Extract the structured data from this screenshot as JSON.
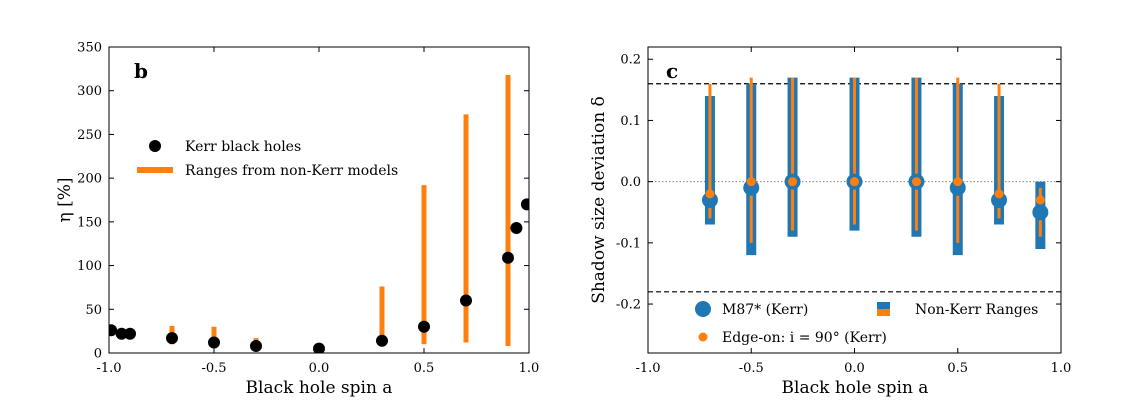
{
  "colors": {
    "kerr": "#000000",
    "orange": "#ff7f0e",
    "blue": "#1f77b4",
    "dashed": "#000000",
    "dotted": "#888888"
  },
  "chart_data": [
    {
      "type": "scatter",
      "panel_label": "b",
      "xlabel": "Black hole spin a",
      "ylabel": "η [%]",
      "xlim": [
        -1.0,
        1.0
      ],
      "ylim": [
        0,
        350
      ],
      "xticks": [
        -1.0,
        -0.5,
        0.0,
        0.5,
        1.0
      ],
      "xtick_labels": [
        "-1.0",
        "-0.5",
        "0.0",
        "0.5",
        "1.0"
      ],
      "yticks": [
        0,
        50,
        100,
        150,
        200,
        250,
        300,
        350
      ],
      "ytick_labels": [
        "0",
        "50",
        "100",
        "150",
        "200",
        "250",
        "300",
        "350"
      ],
      "legend_position": "upper-left",
      "series": [
        {
          "name": "Kerr black holes",
          "kind": "points",
          "x": [
            -0.99,
            -0.94,
            -0.9,
            -0.7,
            -0.5,
            -0.3,
            0.0,
            0.3,
            0.5,
            0.7,
            0.9,
            0.94,
            0.99
          ],
          "y": [
            26,
            22,
            22,
            17,
            12,
            8,
            5,
            14,
            30,
            60,
            109,
            143,
            170
          ]
        },
        {
          "name": "Ranges from non-Kerr models",
          "kind": "ranges",
          "x": [
            -0.7,
            -0.5,
            -0.3,
            0.3,
            0.5,
            0.7,
            0.9
          ],
          "low": [
            10,
            10,
            5,
            13,
            10,
            12,
            8
          ],
          "high": [
            31,
            30,
            17,
            76,
            192,
            273,
            318
          ]
        }
      ]
    },
    {
      "type": "scatter",
      "panel_label": "c",
      "xlabel": "Black hole spin a",
      "ylabel": "Shadow size deviation δ",
      "xlim": [
        -1.0,
        1.0
      ],
      "ylim": [
        -0.28,
        0.22
      ],
      "xticks": [
        -1.0,
        -0.5,
        0.0,
        0.5,
        1.0
      ],
      "xtick_labels": [
        "-1.0",
        "-0.5",
        "0.0",
        "0.5",
        "1.0"
      ],
      "yticks": [
        -0.2,
        -0.1,
        0.0,
        0.1,
        0.2
      ],
      "ytick_labels": [
        "-0.2",
        "-0.1",
        "0.0",
        "0.1",
        "0.2"
      ],
      "reference_lines": {
        "dashed": [
          0.16,
          -0.18
        ],
        "dotted": [
          0.0
        ]
      },
      "legend_position": "lower-center",
      "series": [
        {
          "name": "Non-Kerr Ranges",
          "kind": "ranges",
          "x": [
            -0.7,
            -0.5,
            -0.3,
            0.0,
            0.3,
            0.5,
            0.7,
            0.9
          ],
          "blue_low": [
            -0.07,
            -0.12,
            -0.09,
            -0.08,
            -0.09,
            -0.12,
            -0.07,
            -0.11
          ],
          "blue_high": [
            0.14,
            0.16,
            0.17,
            0.17,
            0.17,
            0.16,
            0.14,
            0.0
          ],
          "orange_low": [
            -0.06,
            -0.1,
            -0.08,
            -0.07,
            -0.08,
            -0.1,
            -0.06,
            -0.09
          ],
          "orange_high": [
            0.16,
            0.17,
            0.17,
            0.17,
            0.17,
            0.17,
            0.16,
            -0.01
          ]
        },
        {
          "name": "M87* (Kerr)",
          "kind": "points",
          "x": [
            -0.7,
            -0.5,
            -0.3,
            0.0,
            0.3,
            0.5,
            0.7,
            0.9
          ],
          "y": [
            -0.03,
            -0.01,
            0.0,
            0.0,
            0.0,
            -0.01,
            -0.03,
            -0.05
          ]
        },
        {
          "name": "Edge-on: i = 90° (Kerr)",
          "kind": "points",
          "x": [
            -0.7,
            -0.5,
            -0.3,
            0.0,
            0.3,
            0.5,
            0.7,
            0.9
          ],
          "y": [
            -0.02,
            0.0,
            0.0,
            0.0,
            0.0,
            0.0,
            -0.02,
            -0.03
          ]
        }
      ]
    }
  ]
}
